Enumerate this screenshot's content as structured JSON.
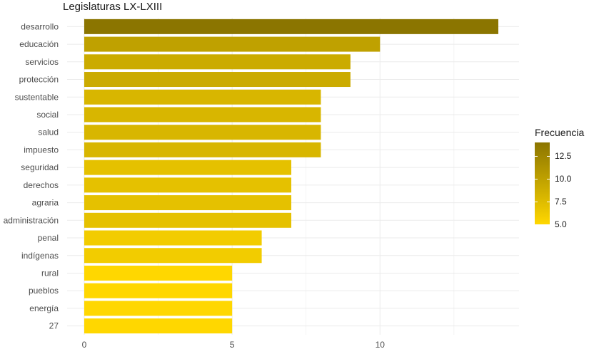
{
  "chart_data": {
    "type": "bar",
    "orientation": "horizontal",
    "title": "Legislaturas LX-LXIII",
    "xlabel": "",
    "ylabel": "",
    "categories": [
      "desarrollo",
      "educación",
      "servicios",
      "protección",
      "sustentable",
      "social",
      "salud",
      "impuesto",
      "seguridad",
      "derechos",
      "agraria",
      "administración",
      "penal",
      "indígenas",
      "rural",
      "pueblos",
      "energía",
      "27"
    ],
    "values": [
      14,
      10,
      9,
      9,
      8,
      8,
      8,
      8,
      7,
      7,
      7,
      7,
      6,
      6,
      5,
      5,
      5,
      5
    ],
    "xlim": [
      0,
      14.5
    ],
    "x_ticks": [
      0,
      5,
      10
    ],
    "x_tick_labels": [
      "0",
      "5",
      "10"
    ],
    "grid": true,
    "legend": {
      "title": "Frecuencia",
      "position": "right",
      "ticks": [
        "5.0",
        "7.5",
        "10.0",
        "12.5"
      ],
      "tick_values": [
        5,
        7.5,
        10,
        12.5
      ],
      "range": [
        5,
        14
      ]
    },
    "colors": {
      "low": "#FFD700",
      "high": "#8B7500"
    }
  }
}
